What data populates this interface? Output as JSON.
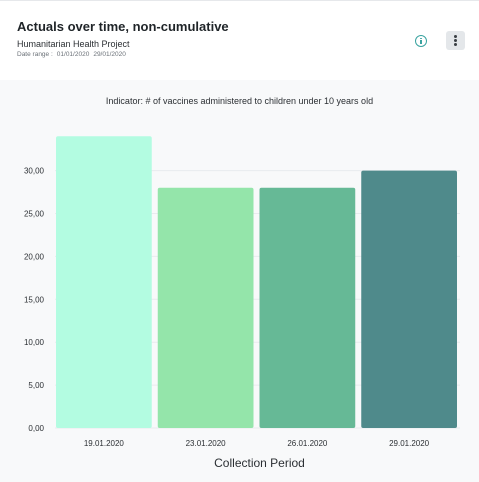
{
  "header": {
    "title": "Actuals over time, non-cumulative",
    "project": "Humanitarian Health Project",
    "date_range_label": "Date range :",
    "date_from": "01/01/2020",
    "date_to": "29/01/2020",
    "info_icon": "info-icon",
    "menu_icon": "more-vertical-icon"
  },
  "chart": {
    "indicator": "Indicator: # of vaccines administered to children under 10 years old"
  },
  "chart_data": {
    "type": "bar",
    "categories": [
      "19.01.2020",
      "23.01.2020",
      "26.01.2020",
      "29.01.2020"
    ],
    "values": [
      34,
      28,
      28,
      30
    ],
    "colors": [
      "#b3fce1",
      "#94e5aa",
      "#66b996",
      "#4f8a8b"
    ],
    "yticks": [
      "0,00",
      "5,00",
      "10,00",
      "15,00",
      "20,00",
      "25,00",
      "30,00"
    ],
    "ylim": [
      0,
      35
    ],
    "xlabel": "Collection Period",
    "ylabel": "",
    "title": "Actuals over time, non-cumulative",
    "grid": true
  }
}
